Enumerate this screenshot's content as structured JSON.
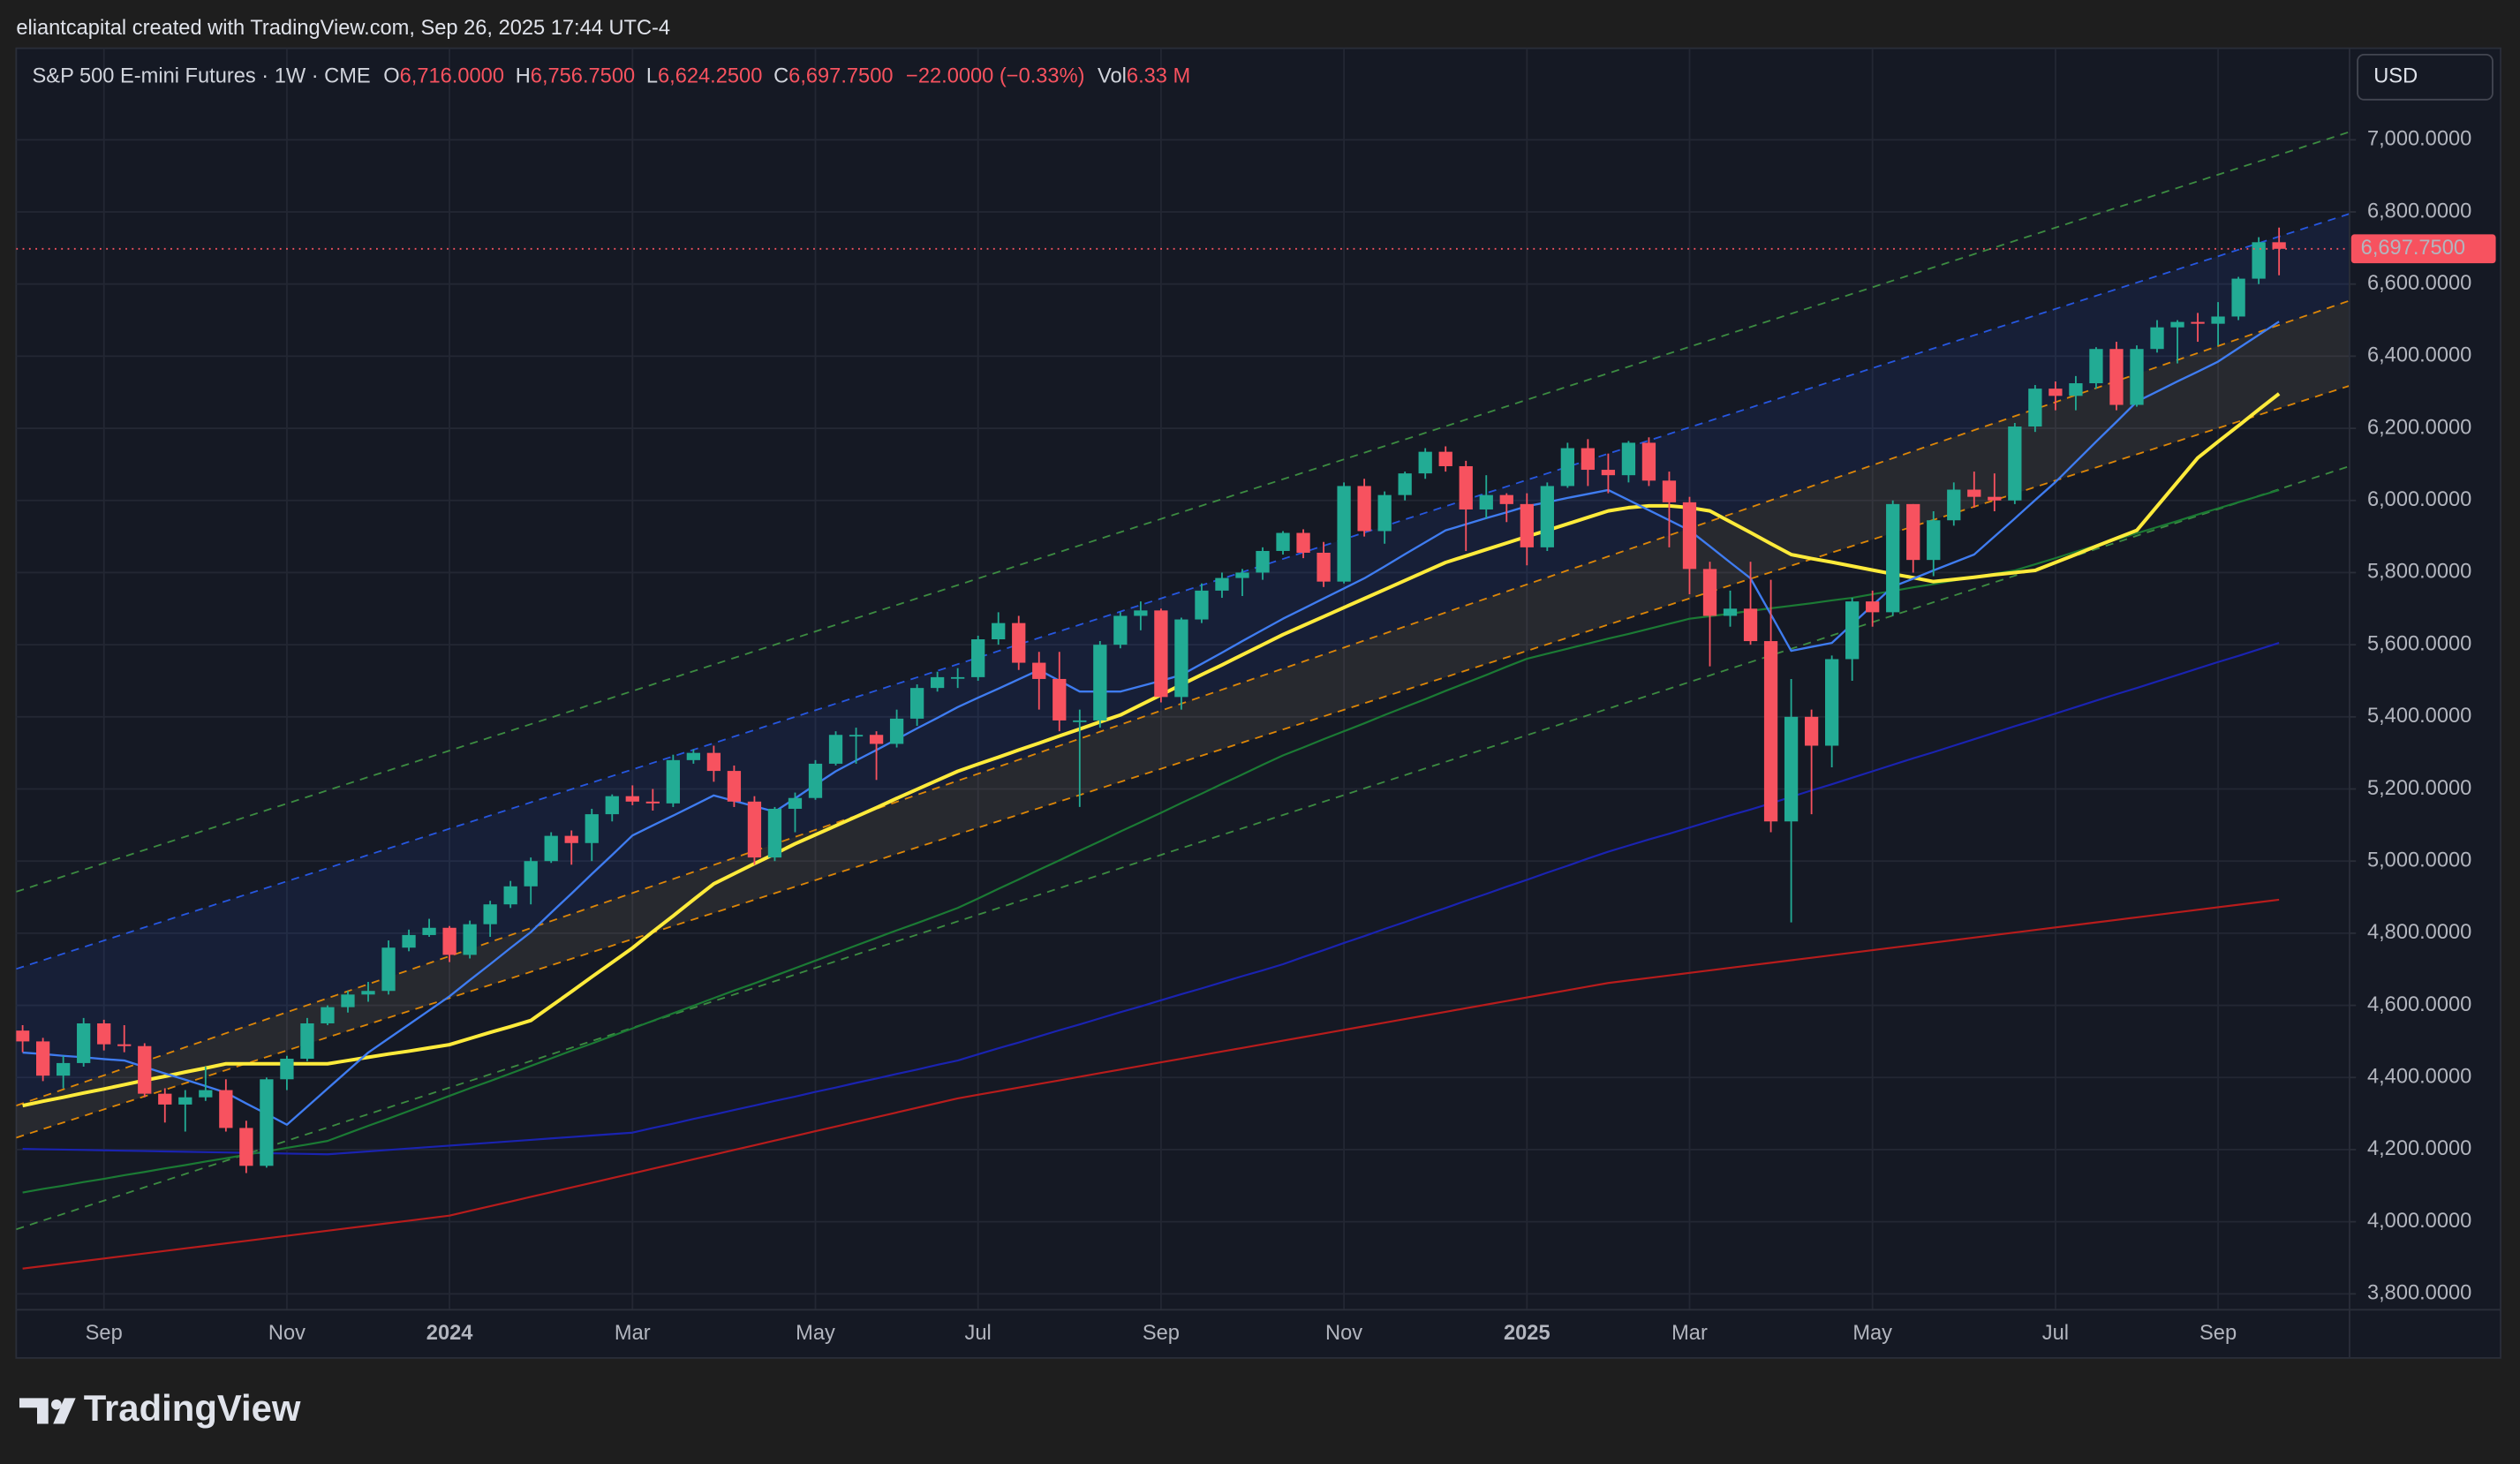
{
  "header": {
    "credit": "eliantcapital created with TradingView.com, Sep 26, 2025 17:44 UTC-4"
  },
  "footer": {
    "brand": "TradingView"
  },
  "chart_data": {
    "type": "candlestick",
    "legend": {
      "symbol": "S&P 500 E-mini Futures · 1W · CME",
      "items": [
        {
          "key": "O",
          "text": "6,716.0000"
        },
        {
          "key": "H",
          "text": "6,756.7500"
        },
        {
          "key": "L",
          "text": "6,624.2500"
        },
        {
          "key": "C",
          "text": "6,697.7500"
        }
      ],
      "change": "−22.0000 (−0.33%)",
      "volume_key": "Vol",
      "volume": "6.33 M"
    },
    "currency": "USD",
    "last_price_label": "6,697.7500",
    "up_color": "#22ab94",
    "down_color": "#f7525f",
    "grid": true,
    "ylim": [
      3756,
      7254
    ],
    "yticks": [
      {
        "value": 3800,
        "label": "3,800.0000"
      },
      {
        "value": 4000,
        "label": "4,000.0000"
      },
      {
        "value": 4200,
        "label": "4,200.0000"
      },
      {
        "value": 4400,
        "label": "4,400.0000"
      },
      {
        "value": 4600,
        "label": "4,600.0000"
      },
      {
        "value": 4800,
        "label": "4,800.0000"
      },
      {
        "value": 5000,
        "label": "5,000.0000"
      },
      {
        "value": 5200,
        "label": "5,200.0000"
      },
      {
        "value": 5400,
        "label": "5,400.0000"
      },
      {
        "value": 5600,
        "label": "5,600.0000"
      },
      {
        "value": 5800,
        "label": "5,800.0000"
      },
      {
        "value": 6000,
        "label": "6,000.0000"
      },
      {
        "value": 6200,
        "label": "6,200.0000"
      },
      {
        "value": 6400,
        "label": "6,400.0000"
      },
      {
        "value": 6600,
        "label": "6,600.0000"
      },
      {
        "value": 6800,
        "label": "6,800.0000"
      },
      {
        "value": 7000,
        "label": "7,000.0000"
      }
    ],
    "categories": [
      null,
      null,
      null,
      null,
      "Sep",
      null,
      null,
      null,
      null,
      null,
      null,
      null,
      null,
      "Nov",
      null,
      null,
      null,
      null,
      null,
      null,
      null,
      "2024",
      null,
      null,
      null,
      null,
      null,
      null,
      null,
      null,
      "Mar",
      null,
      null,
      null,
      null,
      null,
      null,
      null,
      null,
      "May",
      null,
      null,
      null,
      null,
      null,
      null,
      null,
      "Jul",
      null,
      null,
      null,
      null,
      null,
      null,
      null,
      null,
      "Sep",
      null,
      null,
      null,
      null,
      null,
      null,
      null,
      null,
      "Nov",
      null,
      null,
      null,
      null,
      null,
      null,
      null,
      null,
      "2025",
      null,
      null,
      null,
      null,
      null,
      null,
      null,
      "Mar",
      null,
      null,
      null,
      null,
      null,
      null,
      null,
      null,
      "May",
      null,
      null,
      null,
      null,
      null,
      null,
      null,
      null,
      "Jul",
      null,
      null,
      null,
      null,
      null,
      null,
      null,
      "Sep",
      null,
      null,
      null
    ],
    "open": [
      4530,
      4500,
      4405,
      4440,
      4550,
      4492,
      4487,
      4355,
      4325,
      4345,
      4365,
      4260,
      4155,
      4395,
      4452,
      4550,
      4595,
      4630,
      4640,
      4760,
      4795,
      4815,
      4740,
      4825,
      4880,
      4930,
      5000,
      5070,
      5050,
      5130,
      5180,
      5165,
      5160,
      5280,
      5300,
      5250,
      5165,
      5010,
      5145,
      5175,
      5270,
      5350,
      5350,
      5325,
      5395,
      5480,
      5510,
      5510,
      5615,
      5660,
      5550,
      5505,
      5390,
      5390,
      5600,
      5680,
      5695,
      5455,
      5670,
      5750,
      5785,
      5800,
      5860,
      5910,
      5855,
      5775,
      6040,
      5915,
      6015,
      6075,
      6135,
      6095,
      5975,
      6015,
      5990,
      5870,
      6040,
      6145,
      6085,
      6070,
      6160,
      6055,
      5995,
      5810,
      5680,
      5700,
      5610,
      5110,
      5400,
      5320,
      5560,
      5720,
      5690,
      5990,
      5835,
      5945,
      6030,
      6010,
      6000,
      6205,
      6310,
      6290,
      6325,
      6420,
      6265,
      6420,
      6480,
      6495,
      6490,
      6510,
      6615,
      6716
    ],
    "high": [
      4545,
      4510,
      4460,
      4565,
      4560,
      4545,
      4495,
      4370,
      4365,
      4430,
      4395,
      4280,
      4400,
      4460,
      4565,
      4600,
      4640,
      4665,
      4780,
      4810,
      4840,
      4820,
      4835,
      4890,
      4945,
      5010,
      5080,
      5085,
      5145,
      5185,
      5210,
      5200,
      5295,
      5310,
      5320,
      5265,
      5180,
      5150,
      5190,
      5280,
      5360,
      5370,
      5360,
      5420,
      5490,
      5525,
      5535,
      5625,
      5690,
      5680,
      5580,
      5580,
      5420,
      5610,
      5690,
      5720,
      5700,
      5675,
      5770,
      5800,
      5810,
      5870,
      5915,
      5920,
      5885,
      6050,
      6060,
      6025,
      6080,
      6145,
      6150,
      6110,
      6070,
      6020,
      6020,
      6050,
      6160,
      6170,
      6130,
      6165,
      6175,
      6080,
      6010,
      5830,
      5750,
      5830,
      5780,
      5505,
      5420,
      5570,
      5730,
      5750,
      6000,
      5990,
      5970,
      6050,
      6080,
      6075,
      6215,
      6320,
      6330,
      6345,
      6425,
      6440,
      6430,
      6500,
      6500,
      6520,
      6550,
      6620,
      6730,
      6756.75
    ],
    "low": [
      4470,
      4390,
      4370,
      4430,
      4475,
      4470,
      4345,
      4275,
      4250,
      4335,
      4250,
      4135,
      4150,
      4365,
      4445,
      4545,
      4580,
      4610,
      4630,
      4750,
      4790,
      4720,
      4730,
      4790,
      4870,
      4880,
      4995,
      4990,
      5000,
      5110,
      5155,
      5140,
      5150,
      5270,
      5220,
      5150,
      4990,
      5000,
      5080,
      5170,
      5265,
      5270,
      5225,
      5315,
      5375,
      5470,
      5480,
      5500,
      5600,
      5530,
      5420,
      5360,
      5150,
      5370,
      5590,
      5640,
      5440,
      5420,
      5660,
      5730,
      5735,
      5780,
      5850,
      5840,
      5760,
      5770,
      5900,
      5880,
      6000,
      6060,
      6080,
      5860,
      5950,
      5940,
      5820,
      5860,
      6035,
      6040,
      6020,
      6050,
      6040,
      5870,
      5740,
      5540,
      5650,
      5600,
      5080,
      4830,
      5130,
      5260,
      5500,
      5650,
      5680,
      5800,
      5790,
      5930,
      5980,
      5970,
      5990,
      6190,
      6250,
      6250,
      6310,
      6250,
      6260,
      6410,
      6380,
      6440,
      6430,
      6500,
      6600,
      6624.25
    ],
    "close": [
      4500,
      4405,
      4440,
      4550,
      4492,
      4487,
      4355,
      4325,
      4345,
      4365,
      4260,
      4155,
      4395,
      4452,
      4550,
      4595,
      4630,
      4640,
      4760,
      4795,
      4815,
      4740,
      4825,
      4880,
      4930,
      5000,
      5070,
      5050,
      5130,
      5180,
      5165,
      5160,
      5280,
      5300,
      5250,
      5165,
      5010,
      5145,
      5175,
      5270,
      5350,
      5350,
      5325,
      5395,
      5480,
      5510,
      5510,
      5615,
      5660,
      5550,
      5505,
      5390,
      5390,
      5600,
      5680,
      5695,
      5455,
      5670,
      5750,
      5785,
      5800,
      5860,
      5910,
      5855,
      5775,
      6040,
      5915,
      6015,
      6075,
      6135,
      6095,
      5975,
      6015,
      5990,
      5870,
      6040,
      6145,
      6085,
      6070,
      6160,
      6055,
      5995,
      5810,
      5680,
      5700,
      5610,
      5110,
      5400,
      5320,
      5560,
      5720,
      5690,
      5990,
      5835,
      5945,
      6030,
      6010,
      6000,
      6205,
      6310,
      6290,
      6325,
      6420,
      6265,
      6420,
      6480,
      6495,
      6490,
      6510,
      6615,
      6716,
      6697.75
    ],
    "channels": [
      {
        "color": "#43a047",
        "values": [
          4915,
          7022
        ]
      },
      {
        "color": "#2962ff",
        "values": [
          4701,
          6795
        ],
        "fill": "rgba(41,98,255,0.09)"
      },
      {
        "color": "#ff9800",
        "values": [
          4322,
          6554
        ],
        "fill": "rgba(255,224,178,0.08)"
      },
      {
        "color": "#ff9800",
        "values": [
          4233,
          6318
        ]
      },
      {
        "color": "#43a047",
        "values": [
          3979,
          6095
        ]
      }
    ],
    "lines": [
      {
        "color": "#b71c1c",
        "width": 1.2,
        "values": [
          3870,
          3877,
          3884,
          3891,
          3898,
          3905,
          3912,
          3919,
          3926,
          3933,
          3940,
          3947,
          3954,
          3961,
          3968,
          3975,
          3982,
          3989,
          3996,
          4003,
          4010,
          4017,
          4030,
          4043,
          4056,
          4069,
          4082,
          4095,
          4108,
          4121,
          4134,
          4147,
          4160,
          4173,
          4186,
          4199,
          4212,
          4225,
          4238,
          4251,
          4264,
          4277,
          4290,
          4303,
          4316,
          4329,
          4342,
          4352,
          4362,
          4372,
          4382,
          4392,
          4402,
          4412,
          4422,
          4432,
          4442,
          4452,
          4462,
          4472,
          4482,
          4492,
          4502,
          4512,
          4522,
          4532,
          4542,
          4552,
          4562,
          4572,
          4582,
          4592,
          4602,
          4612,
          4622,
          4632,
          4642,
          4652,
          4662,
          4669,
          4676,
          4683,
          4690,
          4697,
          4704,
          4711,
          4718,
          4725,
          4732,
          4739,
          4746,
          4753,
          4760,
          4767,
          4774,
          4781,
          4788,
          4795,
          4802,
          4809,
          4816,
          4823,
          4830,
          4837,
          4844,
          4851,
          4858,
          4865,
          4872,
          4879,
          4886,
          4893
        ]
      },
      {
        "color": "#1a23b0",
        "width": 1.2,
        "values": [
          4202,
          4201,
          4200,
          4199,
          4198,
          4197,
          4196,
          4195,
          4194,
          4193,
          4192,
          4191,
          4190,
          4189,
          4188,
          4187,
          4191,
          4195,
          4199,
          4203,
          4207,
          4211,
          4215,
          4219,
          4223,
          4227,
          4231,
          4235,
          4239,
          4243,
          4247,
          4260,
          4272,
          4285,
          4297,
          4310,
          4322,
          4335,
          4347,
          4360,
          4372,
          4385,
          4397,
          4410,
          4422,
          4435,
          4447,
          4464,
          4481,
          4497,
          4514,
          4531,
          4547,
          4564,
          4581,
          4597,
          4614,
          4631,
          4647,
          4664,
          4681,
          4697,
          4714,
          4734,
          4753,
          4773,
          4792,
          4812,
          4831,
          4851,
          4870,
          4890,
          4909,
          4929,
          4948,
          4968,
          4987,
          5007,
          5026,
          5043,
          5060,
          5076,
          5093,
          5110,
          5127,
          5143,
          5160,
          5178,
          5196,
          5213,
          5231,
          5249,
          5267,
          5285,
          5302,
          5320,
          5338,
          5356,
          5374,
          5391,
          5409,
          5427,
          5445,
          5463,
          5480,
          5498,
          5516,
          5534,
          5552,
          5569,
          5587,
          5605
        ]
      },
      {
        "color": "#1b7a34",
        "width": 1.2,
        "values": [
          4081,
          4091,
          4100,
          4110,
          4119,
          4129,
          4138,
          4148,
          4157,
          4167,
          4176,
          4186,
          4195,
          4205,
          4214,
          4224,
          4245,
          4266,
          4286,
          4307,
          4328,
          4349,
          4370,
          4390,
          4411,
          4432,
          4453,
          4474,
          4494,
          4515,
          4536,
          4557,
          4578,
          4599,
          4620,
          4641,
          4661,
          4682,
          4703,
          4724,
          4745,
          4766,
          4787,
          4808,
          4828,
          4849,
          4870,
          4896,
          4923,
          4949,
          4976,
          5002,
          5029,
          5055,
          5082,
          5108,
          5134,
          5161,
          5187,
          5214,
          5240,
          5267,
          5293,
          5315,
          5338,
          5360,
          5382,
          5405,
          5427,
          5449,
          5472,
          5494,
          5516,
          5539,
          5561,
          5575,
          5589,
          5603,
          5617,
          5630,
          5644,
          5658,
          5672,
          5679,
          5686,
          5694,
          5701,
          5708,
          5715,
          5723,
          5730,
          5740,
          5749,
          5759,
          5768,
          5778,
          5787,
          5797,
          5806,
          5823,
          5840,
          5858,
          5875,
          5892,
          5909,
          5926,
          5943,
          5961,
          5978,
          5995,
          6012,
          6029
        ]
      },
      {
        "color": "#ffeb3b",
        "width": 2.2,
        "values": [
          4322,
          4334,
          4345,
          4357,
          4368,
          4380,
          4392,
          4403,
          4415,
          4426,
          4438,
          4438,
          4438,
          4438,
          4438,
          4438,
          4447,
          4456,
          4465,
          4473,
          4482,
          4491,
          4508,
          4525,
          4541,
          4558,
          4598,
          4638,
          4679,
          4719,
          4759,
          4804,
          4848,
          4893,
          4937,
          4965,
          4993,
          5020,
          5048,
          5073,
          5098,
          5123,
          5148,
          5174,
          5199,
          5224,
          5249,
          5269,
          5288,
          5308,
          5327,
          5347,
          5366,
          5386,
          5405,
          5433,
          5461,
          5489,
          5517,
          5544,
          5572,
          5600,
          5628,
          5653,
          5678,
          5703,
          5728,
          5753,
          5778,
          5803,
          5828,
          5846,
          5864,
          5882,
          5900,
          5917,
          5935,
          5953,
          5971,
          5980,
          5985,
          5985,
          5980,
          5971,
          5941,
          5911,
          5880,
          5850,
          5839,
          5829,
          5818,
          5807,
          5796,
          5786,
          5775,
          5781,
          5787,
          5794,
          5800,
          5806,
          5828,
          5850,
          5873,
          5895,
          5917,
          5984,
          6051,
          6118,
          6163,
          6207,
          6252,
          6296
        ]
      },
      {
        "color": "#3f7cf0",
        "width": 1.3,
        "values": [
          4469,
          4465,
          4460,
          4456,
          4451,
          4447,
          4429,
          4411,
          4394,
          4376,
          4358,
          4328,
          4299,
          4269,
          4319,
          4369,
          4419,
          4469,
          4508,
          4547,
          4586,
          4625,
          4670,
          4714,
          4759,
          4803,
          4857,
          4910,
          4964,
          5017,
          5071,
          5099,
          5126,
          5154,
          5182,
          5167,
          5152,
          5137,
          5174,
          5212,
          5249,
          5279,
          5308,
          5338,
          5368,
          5397,
          5427,
          5453,
          5478,
          5504,
          5530,
          5500,
          5470,
          5470,
          5470,
          5485,
          5500,
          5516,
          5547,
          5578,
          5610,
          5641,
          5672,
          5700,
          5728,
          5756,
          5784,
          5817,
          5851,
          5884,
          5917,
          5934,
          5951,
          5967,
          5984,
          5995,
          6007,
          6018,
          6029,
          6001,
          5973,
          5945,
          5917,
          5873,
          5828,
          5784,
          5684,
          5583,
          5594,
          5605,
          5657,
          5709,
          5761,
          5783,
          5806,
          5828,
          5850,
          5900,
          5950,
          6001,
          6051,
          6107,
          6163,
          6218,
          6274,
          6302,
          6330,
          6357,
          6385,
          6422,
          6459,
          6496
        ]
      }
    ]
  }
}
